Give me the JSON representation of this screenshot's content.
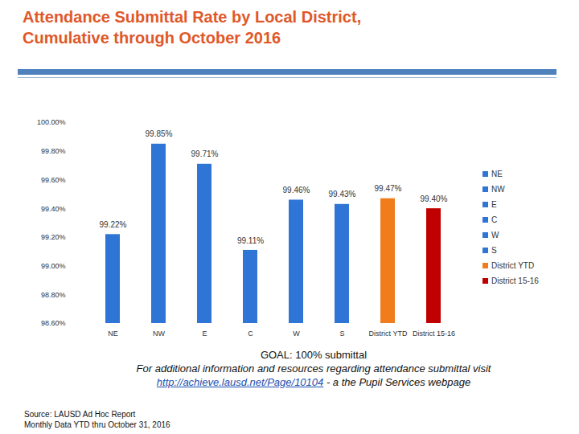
{
  "chart_data": {
    "type": "bar",
    "title": "Attendance Submittal Rate by Local District, Cumulative through October 2016",
    "categories": [
      "NE",
      "NW",
      "E",
      "C",
      "W",
      "S",
      "District YTD",
      "District 15-16"
    ],
    "values": [
      99.22,
      99.85,
      99.71,
      99.11,
      99.46,
      99.43,
      99.47,
      99.4
    ],
    "value_labels": [
      "99.22%",
      "99.85%",
      "99.71%",
      "99.11%",
      "99.46%",
      "99.43%",
      "99.47%",
      "99.40%"
    ],
    "colors": [
      "#2e75d6",
      "#2e75d6",
      "#2e75d6",
      "#2e75d6",
      "#2e75d6",
      "#2e75d6",
      "#f07c1c",
      "#c00000"
    ],
    "ylim": [
      98.6,
      100
    ],
    "yticks": [
      {
        "value": 98.6,
        "label": "98.60%"
      },
      {
        "value": 98.8,
        "label": "98.80%"
      },
      {
        "value": 99.0,
        "label": "99.00%"
      },
      {
        "value": 99.2,
        "label": "99.20%"
      },
      {
        "value": 99.4,
        "label": "99.40%"
      },
      {
        "value": 99.6,
        "label": "99.60%"
      },
      {
        "value": 99.8,
        "label": "99.80%"
      },
      {
        "value": 100,
        "label": "100.00%"
      }
    ],
    "grid": false,
    "legend": "right",
    "data_labels": true,
    "annotations": [
      "GOAL:  100% submittal",
      "For additional information and resources regarding attendance submittal visit",
      "http://achieve.lausd.net/Page/10104",
      " - a the Pupil Services webpage"
    ],
    "source": [
      "Source: LAUSD Ad Hoc Report",
      "Monthly Data YTD thru October 31, 2016"
    ]
  }
}
